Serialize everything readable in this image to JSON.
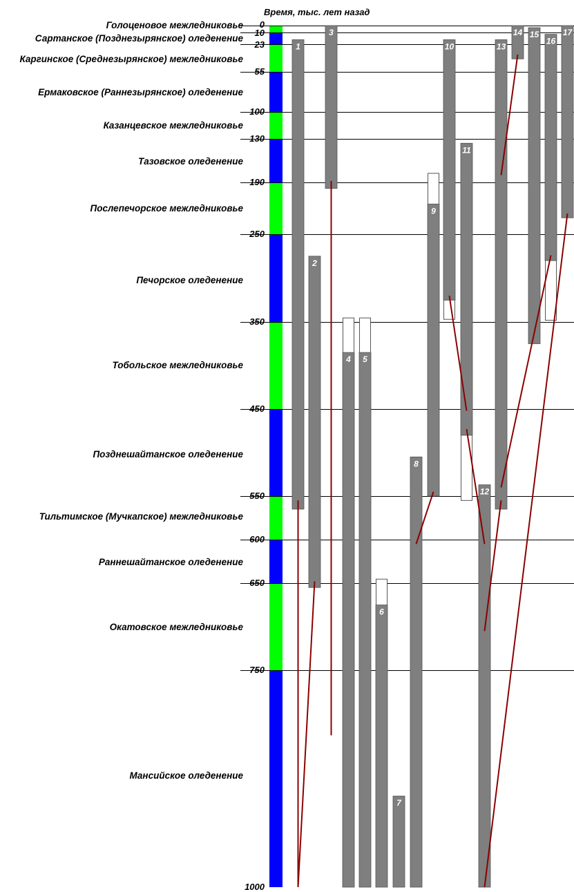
{
  "chart_data": {
    "type": "timeline",
    "axis_title": "Время, тыс. лет назад",
    "y_ticks": [
      0,
      10,
      23,
      55,
      100,
      130,
      190,
      250,
      350,
      450,
      550,
      600,
      650,
      750,
      1000
    ],
    "ylim": [
      0,
      1000
    ],
    "colors": {
      "warm": "#00ff00",
      "cold": "#0000ff",
      "bar": "#7f7f7f",
      "correlation_line": "#8b0000"
    },
    "periods": [
      {
        "name": "Голоценовое межледниковье",
        "start": 0,
        "end": 10,
        "type": "warm"
      },
      {
        "name": "Сартанское (Позднезырянское) оледенение",
        "start": 10,
        "end": 23,
        "type": "cold"
      },
      {
        "name": "Каргинское (Среднезырянское) межледниковье",
        "start": 23,
        "end": 55,
        "type": "warm"
      },
      {
        "name": "Ермаковское (Раннезырянское) оледенение",
        "start": 55,
        "end": 100,
        "type": "cold"
      },
      {
        "name": "Казанцевское межледниковье",
        "start": 100,
        "end": 130,
        "type": "warm"
      },
      {
        "name": "Тазовское оледенение",
        "start": 130,
        "end": 190,
        "type": "cold"
      },
      {
        "name": "Послепечорское межледниковье",
        "start": 190,
        "end": 250,
        "type": "warm"
      },
      {
        "name": "Печорское оледенение",
        "start": 250,
        "end": 350,
        "type": "cold"
      },
      {
        "name": "Тобольское межледниковье",
        "start": 350,
        "end": 450,
        "type": "warm"
      },
      {
        "name": "Позднешайтанское оледенение",
        "start": 450,
        "end": 550,
        "type": "cold"
      },
      {
        "name": "Тильтимское (Мучкапское) межледниковье",
        "start": 550,
        "end": 600,
        "type": "warm"
      },
      {
        "name": "Раннешайтанское оледенение",
        "start": 600,
        "end": 650,
        "type": "cold"
      },
      {
        "name": "Окатовское межледниковье",
        "start": 650,
        "end": 750,
        "type": "warm"
      },
      {
        "name": "Мансийское оледенение",
        "start": 750,
        "end": 1000,
        "type": "cold"
      }
    ],
    "bars": [
      {
        "label": "1",
        "start": 18,
        "end": 565
      },
      {
        "label": "2",
        "start": 275,
        "end": 655
      },
      {
        "label": "3",
        "start": 0,
        "end": 197
      },
      {
        "label": "4",
        "start": 385,
        "end": 1000,
        "uncertain_from": 345
      },
      {
        "label": "5",
        "start": 385,
        "end": 1000,
        "uncertain_from": 345
      },
      {
        "label": "6",
        "start": 675,
        "end": 1000,
        "uncertain_from": 645
      },
      {
        "label": "7",
        "start": 895,
        "end": 1000
      },
      {
        "label": "8",
        "start": 505,
        "end": 1000
      },
      {
        "label": "9",
        "start": 215,
        "end": 550,
        "uncertain_from": 177
      },
      {
        "label": "10",
        "start": 18,
        "end": 325,
        "uncertain_to": 347
      },
      {
        "label": "11",
        "start": 136,
        "end": 480,
        "uncertain_to": 555
      },
      {
        "label": "12",
        "start": 537,
        "end": 1000
      },
      {
        "label": "13",
        "start": 18,
        "end": 565
      },
      {
        "label": "14",
        "start": 0,
        "end": 40
      },
      {
        "label": "15",
        "start": 3,
        "end": 375
      },
      {
        "label": "16",
        "start": 12,
        "end": 280,
        "uncertain_to": 348
      },
      {
        "label": "17",
        "start": 0,
        "end": 231
      }
    ],
    "correlation_lines": [
      {
        "x_bar": 1,
        "from_bar": 1,
        "y1": 555,
        "to_bar": 1,
        "y2": 1000
      },
      {
        "from_bar": 2,
        "y1": 648,
        "to_bar": 1,
        "y2": 1000
      },
      {
        "from_bar": 3,
        "y1": 188,
        "to_bar": 3,
        "y2": 825
      },
      {
        "from_bar": 9,
        "y1": 545,
        "to_bar": 8,
        "y2": 605
      },
      {
        "from_bar": 10,
        "y1": 320,
        "to_bar": 11,
        "y2": 452
      },
      {
        "from_bar": 11,
        "y1": 473,
        "to_bar": 12,
        "y2": 605
      },
      {
        "from_bar": 14,
        "y1": 35,
        "to_bar": 13,
        "y2": 180
      },
      {
        "from_bar": 16,
        "y1": 274,
        "to_bar": 13,
        "y2": 540
      },
      {
        "from_bar": 13,
        "y1": 555,
        "to_bar": 12,
        "y2": 705
      },
      {
        "from_bar": 17,
        "y1": 226,
        "to_bar": 12,
        "y2": 1000
      }
    ]
  }
}
